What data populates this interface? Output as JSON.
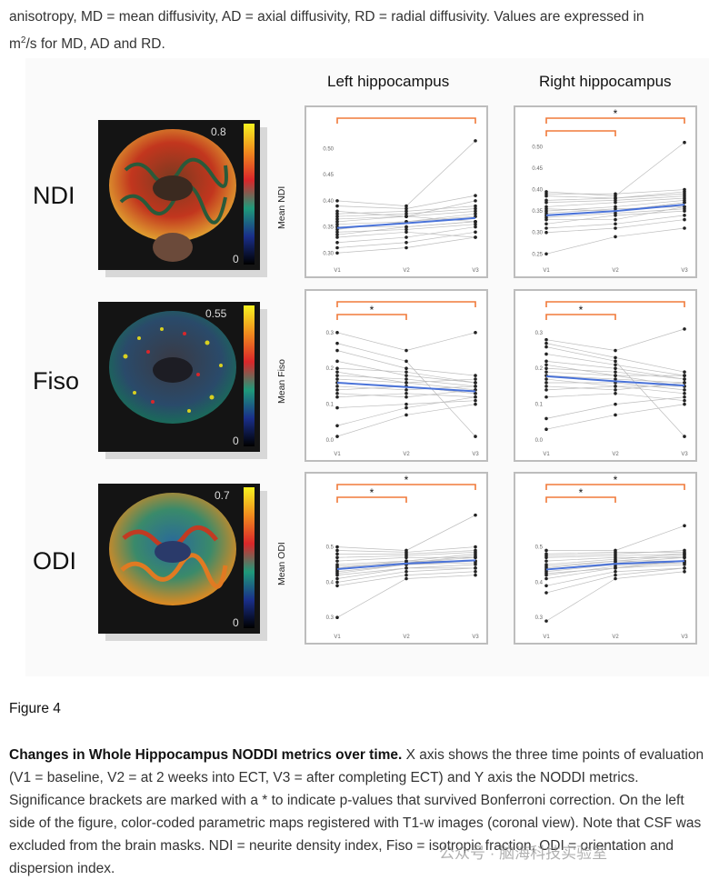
{
  "top_text": {
    "line1": "anisotropy, MD = mean diffusivity, AD = axial diffusivity, RD = radial diffusivity. Values are expressed in",
    "unit_prefix": "m",
    "unit_sup": "2",
    "unit_suffix": "/s for MD, AD and RD."
  },
  "figure": {
    "col_titles": [
      "Left hippocampus",
      "Right hippocampus"
    ],
    "rows": [
      {
        "label": "NDI",
        "ylabel": "Mean NDI",
        "cbar_max": "0.8",
        "cbar_min": "0"
      },
      {
        "label": "Fiso",
        "ylabel": "Mean Fiso",
        "cbar_max": "0.55",
        "cbar_min": "0"
      },
      {
        "label": "ODI",
        "ylabel": "Mean ODI",
        "cbar_max": "0.7",
        "cbar_min": "0"
      }
    ]
  },
  "colors": {
    "trend": "#4a73d9",
    "bracket": "#f07a3a",
    "spaghetti": "#bdbdbd",
    "points": "#222222"
  },
  "chart_data": [
    {
      "type": "line",
      "row": "NDI",
      "panel": "Left hippocampus",
      "x": [
        "V1",
        "V2",
        "V3"
      ],
      "ylim": [
        0.29,
        0.52
      ],
      "yticks": [
        "0.30",
        "0.35",
        "0.40",
        "0.45",
        "0.50"
      ],
      "ytick_values": [
        0.3,
        0.35,
        0.4,
        0.45,
        0.5
      ],
      "trend": [
        0.348,
        0.357,
        0.367
      ],
      "subjects": [
        [
          0.3,
          0.31,
          0.33
        ],
        [
          0.31,
          0.32,
          0.34
        ],
        [
          0.32,
          0.33,
          0.35
        ],
        [
          0.33,
          0.34,
          0.33
        ],
        [
          0.335,
          0.35,
          0.36
        ],
        [
          0.34,
          0.345,
          0.355
        ],
        [
          0.345,
          0.36,
          0.37
        ],
        [
          0.35,
          0.35,
          0.36
        ],
        [
          0.355,
          0.36,
          0.375
        ],
        [
          0.36,
          0.37,
          0.38
        ],
        [
          0.365,
          0.37,
          0.36
        ],
        [
          0.37,
          0.375,
          0.385
        ],
        [
          0.375,
          0.38,
          0.39
        ],
        [
          0.38,
          0.37,
          0.4
        ],
        [
          0.39,
          0.385,
          0.41
        ],
        [
          0.4,
          0.39,
          0.515
        ]
      ],
      "brackets": [
        {
          "from": "V1",
          "to": "V3",
          "star": false
        }
      ]
    },
    {
      "type": "line",
      "row": "NDI",
      "panel": "Right hippocampus",
      "x": [
        "V1",
        "V2",
        "V3"
      ],
      "ylim": [
        0.24,
        0.52
      ],
      "yticks": [
        "0.25",
        "0.30",
        "0.35",
        "0.40",
        "0.45",
        "0.50"
      ],
      "ytick_values": [
        0.25,
        0.3,
        0.35,
        0.4,
        0.45,
        0.5
      ],
      "trend": [
        0.34,
        0.35,
        0.365
      ],
      "subjects": [
        [
          0.25,
          0.29,
          0.31
        ],
        [
          0.3,
          0.31,
          0.33
        ],
        [
          0.31,
          0.32,
          0.34
        ],
        [
          0.32,
          0.34,
          0.35
        ],
        [
          0.33,
          0.33,
          0.36
        ],
        [
          0.335,
          0.345,
          0.355
        ],
        [
          0.34,
          0.35,
          0.37
        ],
        [
          0.345,
          0.355,
          0.36
        ],
        [
          0.35,
          0.36,
          0.375
        ],
        [
          0.355,
          0.35,
          0.37
        ],
        [
          0.36,
          0.37,
          0.38
        ],
        [
          0.37,
          0.375,
          0.385
        ],
        [
          0.375,
          0.38,
          0.39
        ],
        [
          0.385,
          0.38,
          0.395
        ],
        [
          0.39,
          0.39,
          0.4
        ],
        [
          0.395,
          0.385,
          0.51
        ]
      ],
      "brackets": [
        {
          "from": "V1",
          "to": "V2",
          "star": false
        },
        {
          "from": "V1",
          "to": "V3",
          "star": true
        }
      ]
    },
    {
      "type": "line",
      "row": "Fiso",
      "panel": "Left hippocampus",
      "x": [
        "V1",
        "V2",
        "V3"
      ],
      "ylim": [
        -0.005,
        0.33
      ],
      "yticks": [
        "0.0",
        "0.1",
        "0.2",
        "0.3"
      ],
      "ytick_values": [
        0.0,
        0.1,
        0.2,
        0.3
      ],
      "trend": [
        0.16,
        0.148,
        0.136
      ],
      "subjects": [
        [
          0.01,
          0.07,
          0.1
        ],
        [
          0.04,
          0.09,
          0.12
        ],
        [
          0.09,
          0.1,
          0.11
        ],
        [
          0.12,
          0.13,
          0.12
        ],
        [
          0.13,
          0.12,
          0.14
        ],
        [
          0.14,
          0.15,
          0.13
        ],
        [
          0.15,
          0.14,
          0.15
        ],
        [
          0.16,
          0.15,
          0.13
        ],
        [
          0.17,
          0.16,
          0.14
        ],
        [
          0.18,
          0.17,
          0.15
        ],
        [
          0.19,
          0.16,
          0.17
        ],
        [
          0.2,
          0.19,
          0.16
        ],
        [
          0.22,
          0.18,
          0.16
        ],
        [
          0.25,
          0.2,
          0.18
        ],
        [
          0.27,
          0.22,
          0.01
        ],
        [
          0.3,
          0.25,
          0.3
        ]
      ],
      "brackets": [
        {
          "from": "V1",
          "to": "V2",
          "star": true
        },
        {
          "from": "V1",
          "to": "V3",
          "star": false
        }
      ]
    },
    {
      "type": "line",
      "row": "Fiso",
      "panel": "Right hippocampus",
      "x": [
        "V1",
        "V2",
        "V3"
      ],
      "ylim": [
        -0.005,
        0.33
      ],
      "yticks": [
        "0.0",
        "0.1",
        "0.2",
        "0.3"
      ],
      "ytick_values": [
        0.0,
        0.1,
        0.2,
        0.3
      ],
      "trend": [
        0.178,
        0.164,
        0.152
      ],
      "subjects": [
        [
          0.03,
          0.07,
          0.1
        ],
        [
          0.06,
          0.1,
          0.12
        ],
        [
          0.12,
          0.13,
          0.11
        ],
        [
          0.14,
          0.15,
          0.13
        ],
        [
          0.15,
          0.14,
          0.16
        ],
        [
          0.16,
          0.16,
          0.14
        ],
        [
          0.17,
          0.15,
          0.15
        ],
        [
          0.18,
          0.17,
          0.16
        ],
        [
          0.19,
          0.18,
          0.15
        ],
        [
          0.2,
          0.19,
          0.17
        ],
        [
          0.21,
          0.18,
          0.18
        ],
        [
          0.22,
          0.2,
          0.17
        ],
        [
          0.24,
          0.21,
          0.18
        ],
        [
          0.26,
          0.22,
          0.01
        ],
        [
          0.27,
          0.23,
          0.19
        ],
        [
          0.28,
          0.25,
          0.31
        ]
      ],
      "brackets": [
        {
          "from": "V1",
          "to": "V2",
          "star": true
        },
        {
          "from": "V1",
          "to": "V3",
          "star": false
        }
      ]
    },
    {
      "type": "line",
      "row": "ODI",
      "panel": "Left hippocampus",
      "x": [
        "V1",
        "V2",
        "V3"
      ],
      "ylim": [
        0.28,
        0.62
      ],
      "yticks": [
        "0.3",
        "0.4",
        "0.5"
      ],
      "ytick_values": [
        0.3,
        0.4,
        0.5
      ],
      "trend": [
        0.437,
        0.453,
        0.462
      ],
      "subjects": [
        [
          0.3,
          0.41,
          0.42
        ],
        [
          0.39,
          0.42,
          0.43
        ],
        [
          0.4,
          0.43,
          0.44
        ],
        [
          0.41,
          0.44,
          0.45
        ],
        [
          0.42,
          0.44,
          0.44
        ],
        [
          0.425,
          0.45,
          0.455
        ],
        [
          0.43,
          0.45,
          0.46
        ],
        [
          0.435,
          0.455,
          0.47
        ],
        [
          0.44,
          0.46,
          0.46
        ],
        [
          0.445,
          0.455,
          0.475
        ],
        [
          0.45,
          0.46,
          0.48
        ],
        [
          0.46,
          0.47,
          0.47
        ],
        [
          0.47,
          0.475,
          0.485
        ],
        [
          0.48,
          0.48,
          0.49
        ],
        [
          0.49,
          0.485,
          0.5
        ],
        [
          0.5,
          0.49,
          0.59
        ]
      ],
      "brackets": [
        {
          "from": "V1",
          "to": "V2",
          "star": true
        },
        {
          "from": "V1",
          "to": "V3",
          "star": true
        }
      ]
    },
    {
      "type": "line",
      "row": "ODI",
      "panel": "Right hippocampus",
      "x": [
        "V1",
        "V2",
        "V3"
      ],
      "ylim": [
        0.28,
        0.62
      ],
      "yticks": [
        "0.3",
        "0.4",
        "0.5"
      ],
      "ytick_values": [
        0.3,
        0.4,
        0.5
      ],
      "trend": [
        0.436,
        0.452,
        0.46
      ],
      "subjects": [
        [
          0.29,
          0.41,
          0.43
        ],
        [
          0.37,
          0.42,
          0.44
        ],
        [
          0.39,
          0.43,
          0.44
        ],
        [
          0.41,
          0.44,
          0.45
        ],
        [
          0.42,
          0.445,
          0.455
        ],
        [
          0.425,
          0.44,
          0.46
        ],
        [
          0.43,
          0.45,
          0.455
        ],
        [
          0.435,
          0.455,
          0.47
        ],
        [
          0.44,
          0.46,
          0.46
        ],
        [
          0.445,
          0.46,
          0.475
        ],
        [
          0.45,
          0.465,
          0.48
        ],
        [
          0.46,
          0.47,
          0.47
        ],
        [
          0.47,
          0.475,
          0.48
        ],
        [
          0.475,
          0.48,
          0.49
        ],
        [
          0.48,
          0.485,
          0.485
        ],
        [
          0.49,
          0.49,
          0.56
        ]
      ],
      "brackets": [
        {
          "from": "V1",
          "to": "V2",
          "star": true
        },
        {
          "from": "V1",
          "to": "V3",
          "star": true
        }
      ]
    }
  ],
  "figure_label": "Figure 4",
  "caption": {
    "bold": "Changes in Whole Hippocampus NODDI metrics over time.",
    "body": " X axis shows the three time points of evaluation (V1 = baseline, V2 = at 2 weeks into ECT, V3 = after completing ECT) and Y axis the NODDI metrics. Significance brackets are marked with a * to indicate p-values that survived Bonferroni correction. On the left side of the figure, color-coded parametric maps registered with T1-w images (coronal view). Note that CSF was excluded from the brain masks. NDI = neurite density index, Fiso = isotropic fraction, ODI = orientation and dispersion index."
  },
  "watermark": "公众号 · 脑海科技实验室"
}
